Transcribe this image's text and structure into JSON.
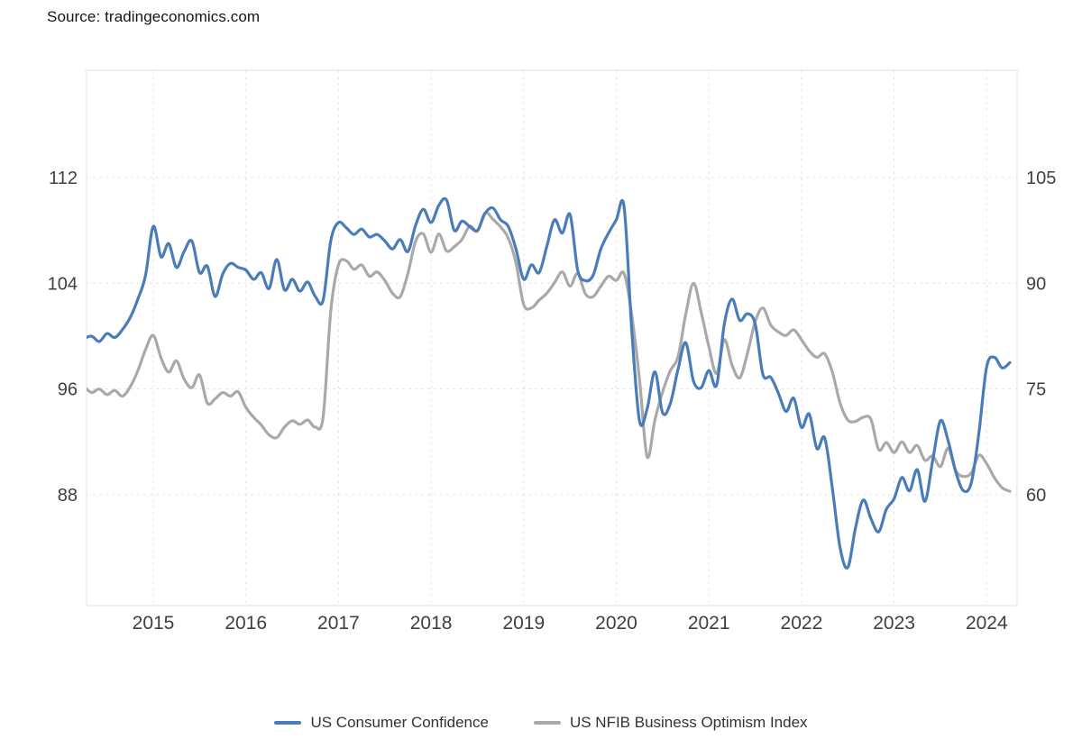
{
  "source": {
    "label": "Source: tradingeconomics.com"
  },
  "legend": [
    {
      "label": "US Consumer Confidence",
      "color": "#4a7cba"
    },
    {
      "label": "US NFIB Business Optimism Index",
      "color": "#a9a9a9"
    }
  ],
  "chart_data": {
    "type": "line",
    "frequency": "monthly",
    "start": "2014-04",
    "end": "2024-04",
    "grid": "dashed",
    "legend_position": "bottom",
    "x_tick_labels": [
      "2015",
      "2016",
      "2017",
      "2018",
      "2019",
      "2020",
      "2021",
      "2022",
      "2023",
      "2024"
    ],
    "left_axis": {
      "tick_labels": [
        "112",
        "104",
        "96",
        "88"
      ],
      "ticks": [
        112,
        104,
        96,
        88
      ]
    },
    "right_axis": {
      "tick_labels": [
        "105",
        "90",
        "75",
        "60"
      ],
      "ticks": [
        105,
        90,
        75,
        60
      ]
    },
    "series": [
      {
        "name": "US Consumer Confidence",
        "axis": "left",
        "color": "#4a7cba",
        "values": [
          99.8,
          100.0,
          99.6,
          100.2,
          99.9,
          100.5,
          101.4,
          102.8,
          104.6,
          108.3,
          106.0,
          107.0,
          105.2,
          106.4,
          107.2,
          104.8,
          105.3,
          103.0,
          104.7,
          105.5,
          105.2,
          105.0,
          104.3,
          104.8,
          103.6,
          105.8,
          103.5,
          104.3,
          103.4,
          104.1,
          103.0,
          102.7,
          107.2,
          108.6,
          108.2,
          107.7,
          108.1,
          107.5,
          107.7,
          107.2,
          106.6,
          107.3,
          106.4,
          108.4,
          109.6,
          108.6,
          109.9,
          110.3,
          108.0,
          108.7,
          108.3,
          108.0,
          109.3,
          109.7,
          108.8,
          108.3,
          106.6,
          104.3,
          105.4,
          104.8,
          106.8,
          108.8,
          107.8,
          109.2,
          105.0,
          104.2,
          104.6,
          106.6,
          107.8,
          108.8,
          109.8,
          100.5,
          93.6,
          94.5,
          97.3,
          94.2,
          94.9,
          97.5,
          99.5,
          96.6,
          96.1,
          97.4,
          96.3,
          100.9,
          102.8,
          101.2,
          101.7,
          100.9,
          97.1,
          96.9,
          95.7,
          94.3,
          95.3,
          93.1,
          94.1,
          91.5,
          92.3,
          88.5,
          84.0,
          82.5,
          85.5,
          87.6,
          86.2,
          85.2,
          86.9,
          87.7,
          89.3,
          88.3,
          89.9,
          87.5,
          90.6,
          93.6,
          92.1,
          89.7,
          88.3,
          88.9,
          92.7,
          97.7,
          98.4,
          97.6,
          98.0
        ]
      },
      {
        "name": "US NFIB Business Optimism Index",
        "axis": "right",
        "color": "#a9a9a9",
        "values": [
          75.4,
          74.5,
          75.0,
          74.2,
          74.8,
          74.0,
          75.3,
          77.6,
          80.6,
          82.6,
          79.4,
          77.4,
          79.0,
          76.4,
          75.2,
          77.0,
          73.0,
          73.6,
          74.5,
          74.0,
          74.6,
          72.4,
          71.0,
          69.9,
          68.5,
          68.1,
          69.6,
          70.5,
          70.0,
          70.6,
          69.6,
          71.0,
          86.0,
          92.6,
          93.2,
          92.0,
          92.6,
          91.0,
          91.6,
          90.4,
          88.6,
          88.1,
          91.4,
          96.0,
          97.0,
          94.4,
          97.0,
          94.6,
          95.2,
          96.2,
          98.1,
          97.4,
          100.0,
          99.1,
          98.0,
          96.4,
          92.9,
          87.0,
          86.5,
          87.6,
          88.6,
          90.1,
          91.6,
          89.6,
          91.4,
          88.5,
          88.1,
          89.6,
          91.0,
          90.4,
          91.4,
          85.5,
          76.4,
          65.4,
          70.6,
          74.6,
          77.6,
          79.6,
          85.6,
          90.0,
          85.9,
          81.0,
          77.2,
          82.0,
          78.4,
          76.6,
          80.1,
          84.6,
          86.5,
          84.1,
          83.1,
          82.6,
          83.4,
          82.0,
          80.4,
          79.5,
          80.0,
          77.4,
          73.0,
          70.6,
          70.4,
          71.0,
          70.7,
          66.4,
          67.4,
          66.0,
          67.5,
          66.0,
          67.0,
          64.9,
          65.5,
          64.0,
          66.6,
          63.4,
          62.6,
          63.1,
          65.6,
          64.4,
          62.4,
          61.0,
          60.5
        ]
      }
    ]
  }
}
